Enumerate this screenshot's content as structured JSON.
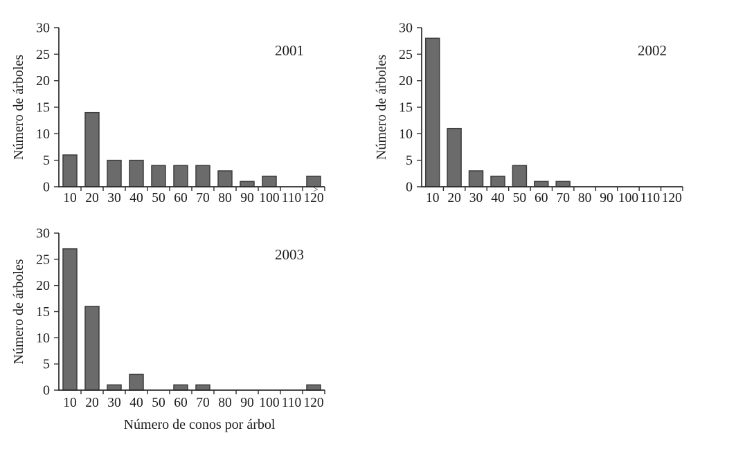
{
  "figure": {
    "background": "#ffffff",
    "ylabel": "Número de árboles",
    "xlabel": "Número de conos por árbol"
  },
  "style": {
    "bar_fill": "#6b6b6b",
    "bar_stroke": "#3c3c3c",
    "axis_color": "#2b2b2b",
    "text_color": "#1c1c1c"
  },
  "chart_data": [
    {
      "type": "bar",
      "title": "2001",
      "categories": [
        "10",
        "20",
        "30",
        "40",
        "50",
        "60",
        "70",
        "80",
        "90",
        "100",
        "110",
        "120"
      ],
      "values": [
        6,
        14,
        5,
        5,
        4,
        4,
        4,
        3,
        1,
        2,
        0,
        2
      ],
      "xlabel": "",
      "ylabel": "Número de árboles",
      "ylim": [
        0,
        30
      ],
      "yticks": [
        0,
        5,
        10,
        15,
        20,
        25,
        30
      ],
      "grid": false,
      "legend": "none",
      "annotations": [
        {
          "text": ">",
          "category": "120"
        }
      ]
    },
    {
      "type": "bar",
      "title": "2002",
      "categories": [
        "10",
        "20",
        "30",
        "40",
        "50",
        "60",
        "70",
        "80",
        "90",
        "100",
        "110",
        "120"
      ],
      "values": [
        28,
        11,
        3,
        2,
        4,
        1,
        1,
        0,
        0,
        0,
        0,
        0
      ],
      "xlabel": "",
      "ylabel": "Número de árboles",
      "ylim": [
        0,
        30
      ],
      "yticks": [
        0,
        5,
        10,
        15,
        20,
        25,
        30
      ],
      "grid": false,
      "legend": "none",
      "annotations": []
    },
    {
      "type": "bar",
      "title": "2003",
      "categories": [
        "10",
        "20",
        "30",
        "40",
        "50",
        "60",
        "70",
        "80",
        "90",
        "100",
        "110",
        "120"
      ],
      "values": [
        27,
        16,
        1,
        3,
        0,
        1,
        1,
        0,
        0,
        0,
        0,
        1
      ],
      "xlabel": "Número de conos por árbol",
      "ylabel": "Número de árboles",
      "ylim": [
        0,
        30
      ],
      "yticks": [
        0,
        5,
        10,
        15,
        20,
        25,
        30
      ],
      "grid": false,
      "legend": "none",
      "annotations": []
    }
  ]
}
